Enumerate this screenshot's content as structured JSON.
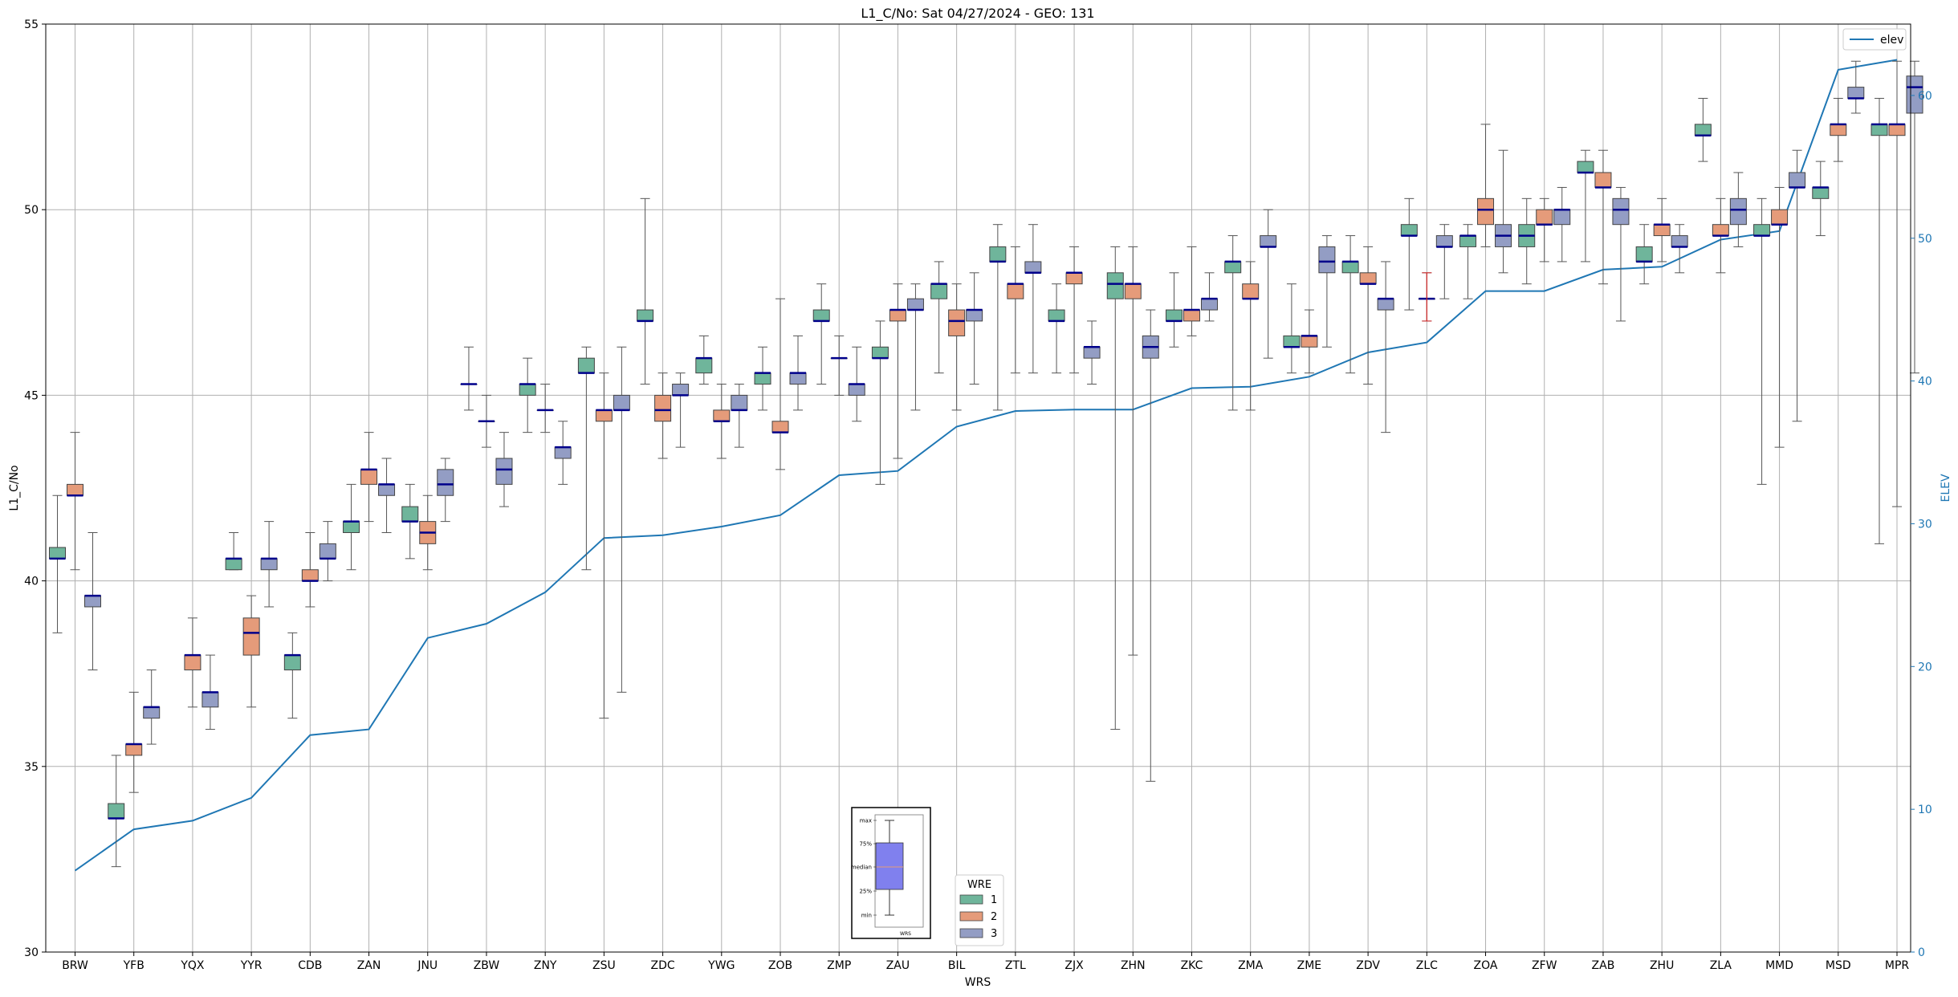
{
  "chart_data": {
    "type": "box",
    "title": "L1_C/No: Sat 04/27/2024 - GEO: 131",
    "xlabel": "WRS",
    "ylabel": "L1_C/No",
    "y2label": "ELEV",
    "ylim": [
      30,
      55
    ],
    "y2lim": [
      0,
      65
    ],
    "yticks": [
      30,
      35,
      40,
      45,
      50,
      55
    ],
    "y2ticks": [
      0,
      10,
      20,
      30,
      40,
      50,
      60
    ],
    "grid": true,
    "categories": [
      "BRW",
      "YFB",
      "YQX",
      "YYR",
      "CDB",
      "ZAN",
      "JNU",
      "ZBW",
      "ZNY",
      "ZSU",
      "ZDC",
      "YWG",
      "ZOB",
      "ZMP",
      "ZAU",
      "BIL",
      "ZTL",
      "ZJX",
      "ZHN",
      "ZKC",
      "ZMA",
      "ZME",
      "ZDV",
      "ZLC",
      "ZOA",
      "ZFW",
      "ZAB",
      "ZHU",
      "ZLA",
      "MMD",
      "MSD",
      "MPR"
    ],
    "elev_legend": "elev",
    "elev_color": "#1f77b4",
    "elev": [
      5.7,
      8.6,
      9.2,
      10.8,
      15.2,
      15.6,
      22.0,
      23.0,
      25.2,
      29.0,
      29.2,
      29.8,
      30.6,
      33.4,
      33.7,
      36.8,
      37.9,
      38.0,
      38.0,
      39.5,
      39.6,
      40.3,
      42.0,
      42.7,
      46.3,
      46.3,
      47.8,
      48.0,
      49.9,
      50.5,
      61.8,
      62.5
    ],
    "wre_legend_title": "WRE",
    "wre_names": [
      "1",
      "2",
      "3"
    ],
    "wre_colors": [
      "#6fb59b",
      "#e59b7a",
      "#939dc4"
    ],
    "median_color": "#00008b",
    "boxes": [
      [
        [
          38.6,
          40.6,
          40.6,
          40.9,
          42.3
        ],
        [
          40.3,
          42.3,
          42.3,
          42.6,
          44.0
        ],
        [
          37.6,
          39.3,
          39.6,
          39.6,
          41.3
        ]
      ],
      [
        [
          32.3,
          33.6,
          33.6,
          34.0,
          35.3
        ],
        [
          34.3,
          35.3,
          35.6,
          35.6,
          37.0
        ],
        [
          35.6,
          36.3,
          36.6,
          36.6,
          37.6
        ]
      ],
      [
        null,
        [
          36.6,
          37.6,
          38.0,
          38.0,
          39.0
        ],
        [
          36.0,
          36.6,
          37.0,
          37.0,
          38.0
        ]
      ],
      [
        [
          40.3,
          40.3,
          40.6,
          40.6,
          41.3
        ],
        [
          36.6,
          38.0,
          38.6,
          39.0,
          39.6
        ],
        [
          39.3,
          40.3,
          40.6,
          40.6,
          41.6
        ]
      ],
      [
        [
          36.3,
          37.6,
          38.0,
          38.0,
          38.6
        ],
        [
          39.3,
          40.0,
          40.0,
          40.3,
          41.3
        ],
        [
          40.0,
          40.6,
          40.6,
          41.0,
          41.6
        ]
      ],
      [
        [
          40.3,
          41.3,
          41.6,
          41.6,
          42.6
        ],
        [
          41.6,
          42.6,
          43.0,
          43.0,
          44.0
        ],
        [
          41.3,
          42.3,
          42.6,
          42.6,
          43.3
        ]
      ],
      [
        [
          40.6,
          41.6,
          41.6,
          42.0,
          42.6
        ],
        [
          40.3,
          41.0,
          41.3,
          41.6,
          42.3
        ],
        [
          41.6,
          42.3,
          42.6,
          43.0,
          43.3
        ]
      ],
      [
        [
          44.6,
          45.3,
          45.3,
          45.3,
          46.3
        ],
        [
          43.6,
          44.3,
          44.3,
          44.3,
          45.0
        ],
        [
          42.0,
          42.6,
          43.0,
          43.3,
          44.0
        ]
      ],
      [
        [
          44.0,
          45.0,
          45.3,
          45.3,
          46.0
        ],
        [
          44.0,
          44.6,
          44.6,
          44.6,
          45.3
        ],
        [
          42.6,
          43.3,
          43.6,
          43.6,
          44.3
        ]
      ],
      [
        [
          40.3,
          45.6,
          45.6,
          46.0,
          46.3
        ],
        [
          36.3,
          44.3,
          44.6,
          44.6,
          45.6
        ],
        [
          37.0,
          44.6,
          44.6,
          45.0,
          46.3
        ]
      ],
      [
        [
          45.3,
          47.0,
          47.0,
          47.3,
          50.3
        ],
        [
          43.3,
          44.3,
          44.6,
          45.0,
          45.6
        ],
        [
          43.6,
          45.0,
          45.0,
          45.3,
          45.6
        ]
      ],
      [
        [
          45.3,
          45.6,
          46.0,
          46.0,
          46.6
        ],
        [
          43.3,
          44.3,
          44.3,
          44.6,
          45.3
        ],
        [
          43.6,
          44.6,
          44.6,
          45.0,
          45.3
        ]
      ],
      [
        [
          44.6,
          45.3,
          45.6,
          45.6,
          46.3
        ],
        [
          43.0,
          44.0,
          44.0,
          44.3,
          47.6
        ],
        [
          44.6,
          45.3,
          45.6,
          45.6,
          46.6
        ]
      ],
      [
        [
          45.3,
          47.0,
          47.0,
          47.3,
          48.0
        ],
        [
          45.0,
          46.0,
          46.0,
          46.0,
          46.6
        ],
        [
          44.3,
          45.0,
          45.3,
          45.3,
          46.3
        ]
      ],
      [
        [
          42.6,
          46.0,
          46.0,
          46.3,
          47.0
        ],
        [
          43.3,
          47.0,
          47.3,
          47.3,
          48.0
        ],
        [
          44.6,
          47.3,
          47.3,
          47.6,
          48.0
        ]
      ],
      [
        [
          45.6,
          47.6,
          48.0,
          48.0,
          48.6
        ],
        [
          44.6,
          46.6,
          47.0,
          47.3,
          48.0
        ],
        [
          45.3,
          47.0,
          47.3,
          47.3,
          48.3
        ]
      ],
      [
        [
          44.6,
          48.6,
          48.6,
          49.0,
          49.6
        ],
        [
          45.6,
          47.6,
          48.0,
          48.0,
          49.0
        ],
        [
          45.6,
          48.3,
          48.3,
          48.6,
          49.6
        ]
      ],
      [
        [
          45.6,
          47.0,
          47.0,
          47.3,
          48.0
        ],
        [
          45.6,
          48.0,
          48.3,
          48.3,
          49.0
        ],
        [
          45.3,
          46.0,
          46.3,
          46.3,
          47.0
        ]
      ],
      [
        [
          36.0,
          47.6,
          48.0,
          48.3,
          49.0
        ],
        [
          38.0,
          47.6,
          48.0,
          48.0,
          49.0
        ],
        [
          34.6,
          46.0,
          46.3,
          46.6,
          47.3
        ]
      ],
      [
        [
          46.3,
          47.0,
          47.0,
          47.3,
          48.3
        ],
        [
          46.6,
          47.0,
          47.3,
          47.3,
          49.0
        ],
        [
          47.0,
          47.3,
          47.6,
          47.6,
          48.3
        ]
      ],
      [
        [
          44.6,
          48.3,
          48.6,
          48.6,
          49.3
        ],
        [
          44.6,
          47.6,
          47.6,
          48.0,
          48.6
        ],
        [
          46.0,
          49.0,
          49.0,
          49.3,
          50.0
        ]
      ],
      [
        [
          45.6,
          46.3,
          46.3,
          46.6,
          48.0
        ],
        [
          45.6,
          46.3,
          46.6,
          46.6,
          47.3
        ],
        [
          46.3,
          48.3,
          48.6,
          49.0,
          49.3
        ]
      ],
      [
        [
          45.6,
          48.3,
          48.6,
          48.6,
          49.3
        ],
        [
          45.3,
          48.0,
          48.0,
          48.3,
          49.0
        ],
        [
          44.0,
          47.3,
          47.6,
          47.6,
          48.6
        ]
      ],
      [
        [
          47.3,
          49.3,
          49.3,
          49.6,
          50.3
        ],
        [
          47.0,
          47.6,
          47.6,
          47.6,
          48.3
        ],
        [
          47.6,
          49.0,
          49.0,
          49.3,
          49.6
        ]
      ],
      [
        [
          47.6,
          49.0,
          49.3,
          49.3,
          49.6
        ],
        [
          49.0,
          49.6,
          50.0,
          50.3,
          52.3
        ],
        [
          48.3,
          49.0,
          49.3,
          49.6,
          51.6
        ]
      ],
      [
        [
          48.0,
          49.0,
          49.3,
          49.6,
          50.3
        ],
        [
          48.6,
          49.6,
          49.6,
          50.0,
          50.3
        ],
        [
          48.6,
          49.6,
          50.0,
          50.0,
          50.6
        ]
      ],
      [
        [
          48.6,
          51.0,
          51.0,
          51.3,
          51.6
        ],
        [
          48.0,
          50.6,
          50.6,
          51.0,
          51.6
        ],
        [
          47.0,
          49.6,
          50.0,
          50.3,
          50.6
        ]
      ],
      [
        [
          48.0,
          48.6,
          48.6,
          49.0,
          49.6
        ],
        [
          48.6,
          49.3,
          49.6,
          49.6,
          50.3
        ],
        [
          48.3,
          49.0,
          49.0,
          49.3,
          49.6
        ]
      ],
      [
        [
          51.3,
          52.0,
          52.0,
          52.3,
          53.0
        ],
        [
          48.3,
          49.3,
          49.3,
          49.6,
          50.3
        ],
        [
          49.0,
          49.6,
          50.0,
          50.3,
          51.0
        ]
      ],
      [
        [
          42.6,
          49.3,
          49.3,
          49.6,
          50.3
        ],
        [
          43.6,
          49.6,
          49.6,
          50.0,
          50.6
        ],
        [
          44.3,
          50.6,
          50.6,
          51.0,
          51.6
        ]
      ],
      [
        [
          49.3,
          50.3,
          50.6,
          50.6,
          51.3
        ],
        [
          51.3,
          52.0,
          52.3,
          52.3,
          53.0
        ],
        [
          52.6,
          53.0,
          53.0,
          53.3,
          54.0
        ]
      ],
      [
        [
          41.0,
          52.0,
          52.3,
          52.3,
          53.0
        ],
        [
          42.0,
          52.0,
          52.3,
          52.3,
          54.0
        ],
        [
          45.6,
          52.6,
          53.3,
          53.6,
          54.0
        ]
      ]
    ],
    "outlier_whiskers": [
      {
        "category": "ZLC",
        "color": "#d62728",
        "low": 47.0,
        "high": 48.3
      }
    ],
    "inset_key": {
      "labels": [
        "max",
        "75%",
        "median",
        "25%",
        "min"
      ],
      "xlabel": "WRS",
      "box_color": "#8080ee"
    }
  }
}
